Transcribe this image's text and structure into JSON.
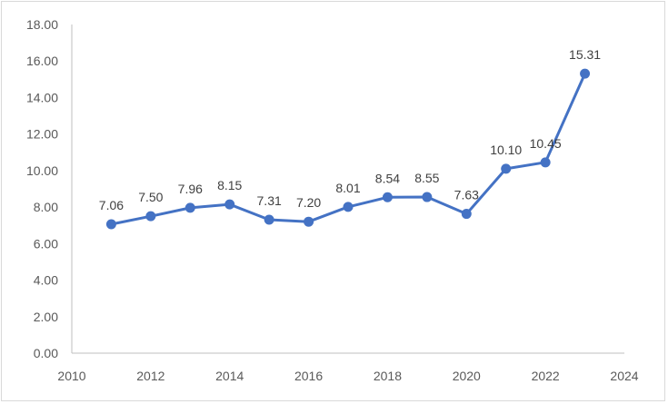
{
  "chart_data": {
    "type": "line",
    "title": "",
    "xlabel": "",
    "ylabel": "",
    "xlim": [
      2010,
      2024
    ],
    "ylim": [
      0,
      18
    ],
    "x_ticks": [
      "2010",
      "2012",
      "2014",
      "2016",
      "2018",
      "2020",
      "2022",
      "2024"
    ],
    "y_ticks": [
      "0.00",
      "2.00",
      "4.00",
      "6.00",
      "8.00",
      "10.00",
      "12.00",
      "14.00",
      "16.00",
      "18.00"
    ],
    "grid": false,
    "legend": "none",
    "series": [
      {
        "color": "#4472c4",
        "x": [
          2011,
          2012,
          2013,
          2014,
          2015,
          2016,
          2017,
          2018,
          2019,
          2020,
          2021,
          2022,
          2023
        ],
        "values": [
          7.06,
          7.5,
          7.96,
          8.15,
          7.31,
          7.2,
          8.01,
          8.54,
          8.55,
          7.63,
          10.1,
          10.45,
          15.31
        ],
        "labels": [
          "7.06",
          "7.50",
          "7.96",
          "8.15",
          "7.31",
          "7.20",
          "8.01",
          "8.54",
          "8.55",
          "7.63",
          "10.10",
          "10.45",
          "15.31"
        ]
      }
    ]
  }
}
